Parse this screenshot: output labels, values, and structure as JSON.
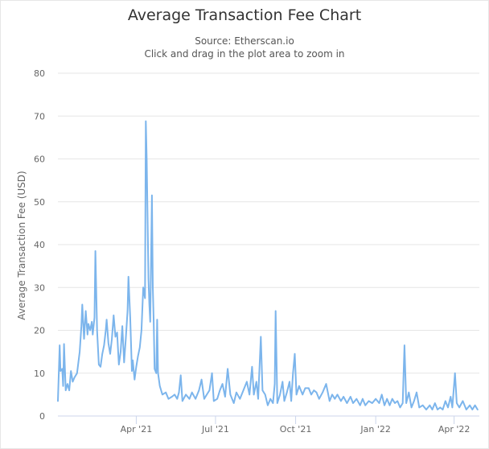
{
  "chart_data": {
    "type": "line",
    "title": "Average Transaction Fee Chart",
    "subtitle": "Source: Etherscan.io",
    "subtitle2": "Click and drag in the plot area to zoom in",
    "xlabel": "",
    "ylabel": "Average Transaction Fee (USD)",
    "ylim": [
      0,
      80
    ],
    "yticks": [
      0,
      10,
      20,
      30,
      40,
      50,
      60,
      70,
      80
    ],
    "xlim": [
      "2021-01-01",
      "2022-04-30"
    ],
    "xticks": [
      {
        "label": "Apr '21",
        "date": "2021-04-01"
      },
      {
        "label": "Jul '21",
        "date": "2021-07-01"
      },
      {
        "label": "Oct '21",
        "date": "2021-10-01"
      },
      {
        "label": "Jan '22",
        "date": "2022-01-01"
      },
      {
        "label": "Apr '22",
        "date": "2022-04-01"
      }
    ],
    "grid": "horizontal",
    "color": "#7cb5ec",
    "series": [
      {
        "points": [
          [
            "2021-01-01",
            3.5
          ],
          [
            "2021-01-03",
            16.5
          ],
          [
            "2021-01-04",
            10.5
          ],
          [
            "2021-01-06",
            11
          ],
          [
            "2021-01-07",
            7
          ],
          [
            "2021-01-08",
            16.8
          ],
          [
            "2021-01-10",
            6
          ],
          [
            "2021-01-12",
            7.5
          ],
          [
            "2021-01-14",
            6
          ],
          [
            "2021-01-16",
            10.5
          ],
          [
            "2021-01-18",
            8
          ],
          [
            "2021-01-20",
            9
          ],
          [
            "2021-01-23",
            10
          ],
          [
            "2021-01-26",
            15
          ],
          [
            "2021-01-28",
            21
          ],
          [
            "2021-01-29",
            26
          ],
          [
            "2021-01-31",
            18
          ],
          [
            "2021-02-02",
            24.5
          ],
          [
            "2021-02-04",
            19
          ],
          [
            "2021-02-05",
            21.5
          ],
          [
            "2021-02-07",
            20
          ],
          [
            "2021-02-09",
            22
          ],
          [
            "2021-02-10",
            19
          ],
          [
            "2021-02-12",
            23
          ],
          [
            "2021-02-13",
            38.5
          ],
          [
            "2021-02-15",
            20
          ],
          [
            "2021-02-17",
            12
          ],
          [
            "2021-02-19",
            11.5
          ],
          [
            "2021-02-21",
            14.5
          ],
          [
            "2021-02-23",
            16.5
          ],
          [
            "2021-02-25",
            20
          ],
          [
            "2021-02-26",
            22.5
          ],
          [
            "2021-02-28",
            17
          ],
          [
            "2021-03-02",
            14.5
          ],
          [
            "2021-03-04",
            18
          ],
          [
            "2021-03-06",
            23.5
          ],
          [
            "2021-03-08",
            18.5
          ],
          [
            "2021-03-10",
            19.5
          ],
          [
            "2021-03-12",
            12
          ],
          [
            "2021-03-14",
            15
          ],
          [
            "2021-03-16",
            21
          ],
          [
            "2021-03-18",
            12.5
          ],
          [
            "2021-03-20",
            18
          ],
          [
            "2021-03-22",
            24.5
          ],
          [
            "2021-03-23",
            32.5
          ],
          [
            "2021-03-25",
            23
          ],
          [
            "2021-03-27",
            10.5
          ],
          [
            "2021-03-28",
            13
          ],
          [
            "2021-03-30",
            8.5
          ],
          [
            "2021-04-01",
            11.5
          ],
          [
            "2021-04-03",
            14
          ],
          [
            "2021-04-05",
            16
          ],
          [
            "2021-04-07",
            20
          ],
          [
            "2021-04-09",
            30
          ],
          [
            "2021-04-11",
            27.5
          ],
          [
            "2021-04-12",
            68.8
          ],
          [
            "2021-04-13",
            60
          ],
          [
            "2021-04-14",
            46
          ],
          [
            "2021-04-15",
            32
          ],
          [
            "2021-04-16",
            26
          ],
          [
            "2021-04-17",
            22
          ],
          [
            "2021-04-19",
            51.5
          ],
          [
            "2021-04-20",
            30
          ],
          [
            "2021-04-21",
            22
          ],
          [
            "2021-04-22",
            11
          ],
          [
            "2021-04-24",
            10
          ],
          [
            "2021-04-25",
            22.5
          ],
          [
            "2021-04-26",
            10
          ],
          [
            "2021-04-28",
            7
          ],
          [
            "2021-05-01",
            5
          ],
          [
            "2021-05-05",
            5.5
          ],
          [
            "2021-05-08",
            4
          ],
          [
            "2021-05-12",
            4.5
          ],
          [
            "2021-05-15",
            5
          ],
          [
            "2021-05-18",
            4
          ],
          [
            "2021-05-20",
            5.5
          ],
          [
            "2021-05-22",
            9.5
          ],
          [
            "2021-05-24",
            3.5
          ],
          [
            "2021-05-28",
            5
          ],
          [
            "2021-06-01",
            4
          ],
          [
            "2021-06-04",
            5.5
          ],
          [
            "2021-06-08",
            4
          ],
          [
            "2021-06-12",
            6
          ],
          [
            "2021-06-15",
            8.5
          ],
          [
            "2021-06-18",
            4
          ],
          [
            "2021-06-21",
            5
          ],
          [
            "2021-06-24",
            6
          ],
          [
            "2021-06-27",
            10
          ],
          [
            "2021-06-29",
            3.5
          ],
          [
            "2021-07-03",
            4
          ],
          [
            "2021-07-06",
            6
          ],
          [
            "2021-07-09",
            7.5
          ],
          [
            "2021-07-12",
            4.5
          ],
          [
            "2021-07-15",
            11
          ],
          [
            "2021-07-18",
            5
          ],
          [
            "2021-07-22",
            3
          ],
          [
            "2021-07-25",
            5.5
          ],
          [
            "2021-07-29",
            4
          ],
          [
            "2021-08-02",
            6
          ],
          [
            "2021-08-06",
            8
          ],
          [
            "2021-08-09",
            5
          ],
          [
            "2021-08-12",
            11.5
          ],
          [
            "2021-08-14",
            5
          ],
          [
            "2021-08-17",
            8
          ],
          [
            "2021-08-19",
            4
          ],
          [
            "2021-08-22",
            18.5
          ],
          [
            "2021-08-24",
            6
          ],
          [
            "2021-08-27",
            5
          ],
          [
            "2021-08-30",
            2.5
          ],
          [
            "2021-09-02",
            4
          ],
          [
            "2021-09-05",
            3
          ],
          [
            "2021-09-07",
            7.5
          ],
          [
            "2021-09-08",
            24.5
          ],
          [
            "2021-09-10",
            3
          ],
          [
            "2021-09-13",
            5
          ],
          [
            "2021-09-16",
            8
          ],
          [
            "2021-09-18",
            3.5
          ],
          [
            "2021-09-21",
            5.5
          ],
          [
            "2021-09-24",
            8
          ],
          [
            "2021-09-26",
            3.5
          ],
          [
            "2021-09-28",
            10
          ],
          [
            "2021-09-30",
            14.5
          ],
          [
            "2021-10-02",
            5
          ],
          [
            "2021-10-05",
            7
          ],
          [
            "2021-10-09",
            5
          ],
          [
            "2021-10-12",
            6.5
          ],
          [
            "2021-10-16",
            6.5
          ],
          [
            "2021-10-19",
            5
          ],
          [
            "2021-10-22",
            6
          ],
          [
            "2021-10-25",
            5.5
          ],
          [
            "2021-10-28",
            4
          ],
          [
            "2021-11-01",
            5.5
          ],
          [
            "2021-11-05",
            7.5
          ],
          [
            "2021-11-09",
            3.5
          ],
          [
            "2021-11-12",
            5
          ],
          [
            "2021-11-15",
            4
          ],
          [
            "2021-11-18",
            5
          ],
          [
            "2021-11-22",
            3.5
          ],
          [
            "2021-11-25",
            4.5
          ],
          [
            "2021-11-29",
            3
          ],
          [
            "2021-12-03",
            4.5
          ],
          [
            "2021-12-06",
            3
          ],
          [
            "2021-12-10",
            4
          ],
          [
            "2021-12-14",
            2.5
          ],
          [
            "2021-12-17",
            4
          ],
          [
            "2021-12-20",
            2.5
          ],
          [
            "2021-12-24",
            3.5
          ],
          [
            "2021-12-28",
            3
          ],
          [
            "2022-01-01",
            4
          ],
          [
            "2022-01-05",
            3
          ],
          [
            "2022-01-08",
            5
          ],
          [
            "2022-01-11",
            2.5
          ],
          [
            "2022-01-14",
            4
          ],
          [
            "2022-01-17",
            2.5
          ],
          [
            "2022-01-20",
            4
          ],
          [
            "2022-01-23",
            3
          ],
          [
            "2022-01-26",
            3.5
          ],
          [
            "2022-01-29",
            2
          ],
          [
            "2022-02-01",
            3
          ],
          [
            "2022-02-03",
            16.5
          ],
          [
            "2022-02-05",
            3
          ],
          [
            "2022-02-08",
            5.5
          ],
          [
            "2022-02-11",
            2
          ],
          [
            "2022-02-14",
            3.5
          ],
          [
            "2022-02-17",
            5.5
          ],
          [
            "2022-02-20",
            2
          ],
          [
            "2022-02-24",
            2.5
          ],
          [
            "2022-02-28",
            1.5
          ],
          [
            "2022-03-04",
            2.5
          ],
          [
            "2022-03-07",
            1.5
          ],
          [
            "2022-03-10",
            3
          ],
          [
            "2022-03-13",
            1.5
          ],
          [
            "2022-03-16",
            2
          ],
          [
            "2022-03-19",
            1.5
          ],
          [
            "2022-03-22",
            3.5
          ],
          [
            "2022-03-25",
            2
          ],
          [
            "2022-03-28",
            4.5
          ],
          [
            "2022-03-30",
            2
          ],
          [
            "2022-04-02",
            10
          ],
          [
            "2022-04-04",
            3
          ],
          [
            "2022-04-07",
            2
          ],
          [
            "2022-04-11",
            3.5
          ],
          [
            "2022-04-15",
            1.5
          ],
          [
            "2022-04-19",
            2.5
          ],
          [
            "2022-04-22",
            1.5
          ],
          [
            "2022-04-25",
            2.5
          ],
          [
            "2022-04-28",
            1.5
          ]
        ]
      }
    ]
  }
}
